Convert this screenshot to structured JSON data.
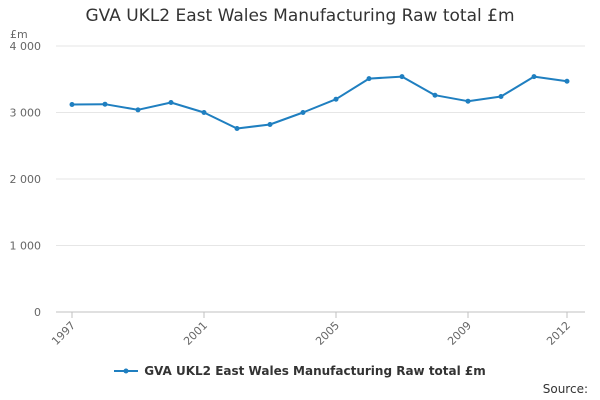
{
  "chart_data": {
    "type": "line",
    "title": "GVA UKL2 East Wales Manufacturing Raw total £m",
    "ylabel": "£m",
    "xlabel": "",
    "ylim": [
      0,
      4000
    ],
    "xlim": [
      1997,
      2012
    ],
    "yticks": [
      0,
      1000,
      2000,
      3000,
      4000
    ],
    "ytick_labels": [
      "0",
      "1 000",
      "2 000",
      "3 000",
      "4 000"
    ],
    "xticks": [
      1997,
      2001,
      2005,
      2009,
      2012
    ],
    "xtick_labels": [
      "1997",
      "2001",
      "2005",
      "2009",
      "2012"
    ],
    "grid": true,
    "legend_position": "bottom",
    "series": [
      {
        "name": "GVA UKL2 East Wales Manufacturing Raw total £m",
        "color": "#1f7fc0",
        "x": [
          1997,
          1998,
          1999,
          2000,
          2001,
          2002,
          2003,
          2004,
          2005,
          2006,
          2007,
          2008,
          2009,
          2010,
          2011,
          2012
        ],
        "values": [
          3120,
          3125,
          3040,
          3150,
          3000,
          2760,
          2820,
          3000,
          3200,
          3510,
          3540,
          3260,
          3170,
          3240,
          3540,
          3470
        ]
      }
    ]
  },
  "footer": {
    "source_label": "Source:"
  }
}
